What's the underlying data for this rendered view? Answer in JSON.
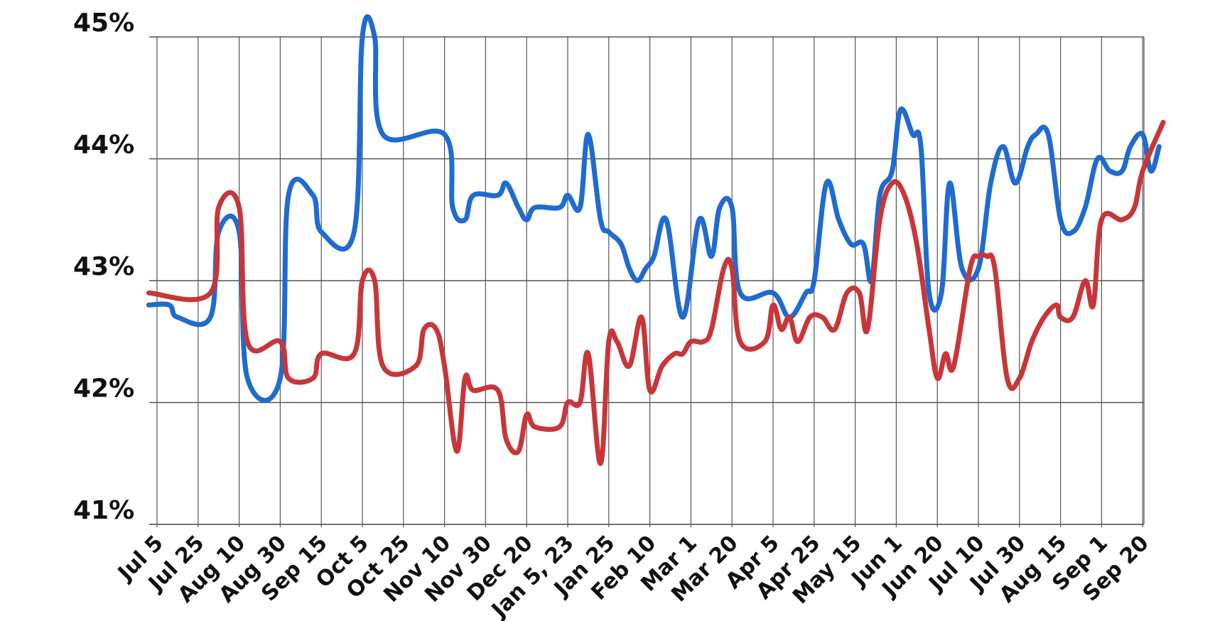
{
  "chart_data": {
    "type": "line",
    "title": "",
    "xlabel": "",
    "ylabel": "",
    "ylim": [
      41,
      45
    ],
    "y_ticks": [
      "41%",
      "42%",
      "43%",
      "44%",
      "45%"
    ],
    "grid": true,
    "x_ticks": [
      "Jul 5",
      "Jul 25",
      "Aug 10",
      "Aug 30",
      "Sep 15",
      "Oct 5",
      "Oct 25",
      "Nov 10",
      "Nov 30",
      "Dec 20",
      "Jan 5, 23",
      "Jan 25",
      "Feb 10",
      "Mar 1",
      "Mar 20",
      "Apr 5",
      "Apr 25",
      "May 15",
      "Jun 1",
      "Jun 20",
      "Jul 10",
      "Jul 30",
      "Aug 15",
      "Sep 1",
      "Sep 20"
    ],
    "colors": {
      "series_1": "#1f6bd1",
      "series_2": "#c8363a"
    },
    "series": [
      {
        "color": "#1f6bd1",
        "points": [
          [
            -0.2,
            42.8
          ],
          [
            0.3,
            42.8
          ],
          [
            0.5,
            42.7
          ],
          [
            1.3,
            42.7
          ],
          [
            1.5,
            43.4
          ],
          [
            2.0,
            43.4
          ],
          [
            2.2,
            42.2
          ],
          [
            3.0,
            42.2
          ],
          [
            3.2,
            43.7
          ],
          [
            3.8,
            43.7
          ],
          [
            4.0,
            43.4
          ],
          [
            4.8,
            43.4
          ],
          [
            5.0,
            45.0
          ],
          [
            5.3,
            45.0
          ],
          [
            5.5,
            44.2
          ],
          [
            7.0,
            44.2
          ],
          [
            7.2,
            43.6
          ],
          [
            7.5,
            43.5
          ],
          [
            7.7,
            43.7
          ],
          [
            8.3,
            43.7
          ],
          [
            8.5,
            43.8
          ],
          [
            8.8,
            43.6
          ],
          [
            9.0,
            43.5
          ],
          [
            9.2,
            43.6
          ],
          [
            9.8,
            43.6
          ],
          [
            10.0,
            43.7
          ],
          [
            10.3,
            43.6
          ],
          [
            10.5,
            44.2
          ],
          [
            10.8,
            43.5
          ],
          [
            11.0,
            43.4
          ],
          [
            11.3,
            43.3
          ],
          [
            11.5,
            43.1
          ],
          [
            11.7,
            43.0
          ],
          [
            11.9,
            43.1
          ],
          [
            12.1,
            43.2
          ],
          [
            12.4,
            43.5
          ],
          [
            12.8,
            42.7
          ],
          [
            13.2,
            43.5
          ],
          [
            13.5,
            43.2
          ],
          [
            13.7,
            43.6
          ],
          [
            14.0,
            43.6
          ],
          [
            14.2,
            42.9
          ],
          [
            15.0,
            42.9
          ],
          [
            15.4,
            42.7
          ],
          [
            15.8,
            42.9
          ],
          [
            16.0,
            43.0
          ],
          [
            16.3,
            43.8
          ],
          [
            16.6,
            43.5
          ],
          [
            16.9,
            43.3
          ],
          [
            17.2,
            43.3
          ],
          [
            17.4,
            43.0
          ],
          [
            17.6,
            43.7
          ],
          [
            17.9,
            43.9
          ],
          [
            18.1,
            44.4
          ],
          [
            18.4,
            44.2
          ],
          [
            18.6,
            44.1
          ],
          [
            18.8,
            42.9
          ],
          [
            19.1,
            42.9
          ],
          [
            19.3,
            43.8
          ],
          [
            19.6,
            43.1
          ],
          [
            20.0,
            43.1
          ],
          [
            20.3,
            43.8
          ],
          [
            20.6,
            44.1
          ],
          [
            20.9,
            43.8
          ],
          [
            21.2,
            44.1
          ],
          [
            21.4,
            44.2
          ],
          [
            21.7,
            44.2
          ],
          [
            22.0,
            43.5
          ],
          [
            22.3,
            43.4
          ],
          [
            22.6,
            43.6
          ],
          [
            22.9,
            44.0
          ],
          [
            23.2,
            43.9
          ],
          [
            23.5,
            43.9
          ],
          [
            23.7,
            44.1
          ],
          [
            24.0,
            44.2
          ],
          [
            24.2,
            43.9
          ],
          [
            24.4,
            44.1
          ]
        ]
      },
      {
        "color": "#c8363a",
        "points": [
          [
            -0.2,
            42.9
          ],
          [
            1.3,
            42.9
          ],
          [
            1.5,
            43.6
          ],
          [
            2.0,
            43.6
          ],
          [
            2.2,
            42.5
          ],
          [
            3.0,
            42.5
          ],
          [
            3.2,
            42.2
          ],
          [
            3.8,
            42.2
          ],
          [
            4.0,
            42.4
          ],
          [
            4.8,
            42.4
          ],
          [
            5.0,
            43.0
          ],
          [
            5.3,
            43.0
          ],
          [
            5.5,
            42.3
          ],
          [
            6.3,
            42.3
          ],
          [
            6.5,
            42.6
          ],
          [
            6.8,
            42.6
          ],
          [
            7.0,
            42.3
          ],
          [
            7.3,
            41.6
          ],
          [
            7.5,
            42.2
          ],
          [
            7.7,
            42.1
          ],
          [
            8.3,
            42.1
          ],
          [
            8.5,
            41.7
          ],
          [
            8.8,
            41.6
          ],
          [
            9.0,
            41.9
          ],
          [
            9.2,
            41.8
          ],
          [
            9.8,
            41.8
          ],
          [
            10.0,
            42.0
          ],
          [
            10.3,
            42.0
          ],
          [
            10.5,
            42.4
          ],
          [
            10.8,
            41.5
          ],
          [
            11.0,
            42.5
          ],
          [
            11.2,
            42.5
          ],
          [
            11.5,
            42.3
          ],
          [
            11.8,
            42.7
          ],
          [
            12.0,
            42.1
          ],
          [
            12.3,
            42.3
          ],
          [
            12.6,
            42.4
          ],
          [
            12.8,
            42.4
          ],
          [
            13.0,
            42.5
          ],
          [
            13.3,
            42.5
          ],
          [
            13.5,
            42.6
          ],
          [
            13.8,
            43.1
          ],
          [
            14.0,
            43.1
          ],
          [
            14.2,
            42.5
          ],
          [
            14.8,
            42.5
          ],
          [
            15.0,
            42.8
          ],
          [
            15.2,
            42.6
          ],
          [
            15.4,
            42.7
          ],
          [
            15.6,
            42.5
          ],
          [
            15.9,
            42.7
          ],
          [
            16.2,
            42.7
          ],
          [
            16.5,
            42.6
          ],
          [
            16.8,
            42.9
          ],
          [
            17.1,
            42.9
          ],
          [
            17.3,
            42.6
          ],
          [
            17.6,
            43.5
          ],
          [
            17.9,
            43.8
          ],
          [
            18.2,
            43.7
          ],
          [
            18.5,
            43.3
          ],
          [
            18.8,
            42.6
          ],
          [
            19.0,
            42.2
          ],
          [
            19.2,
            42.4
          ],
          [
            19.4,
            42.3
          ],
          [
            19.8,
            43.1
          ],
          [
            20.0,
            43.2
          ],
          [
            20.2,
            43.2
          ],
          [
            20.4,
            43.1
          ],
          [
            20.7,
            42.2
          ],
          [
            21.0,
            42.2
          ],
          [
            21.3,
            42.5
          ],
          [
            21.6,
            42.7
          ],
          [
            21.9,
            42.8
          ],
          [
            22.0,
            42.7
          ],
          [
            22.3,
            42.7
          ],
          [
            22.6,
            43.0
          ],
          [
            22.8,
            42.8
          ],
          [
            23.0,
            43.5
          ],
          [
            23.5,
            43.5
          ],
          [
            23.8,
            43.6
          ],
          [
            24.0,
            43.9
          ],
          [
            24.5,
            44.3
          ]
        ]
      }
    ]
  }
}
